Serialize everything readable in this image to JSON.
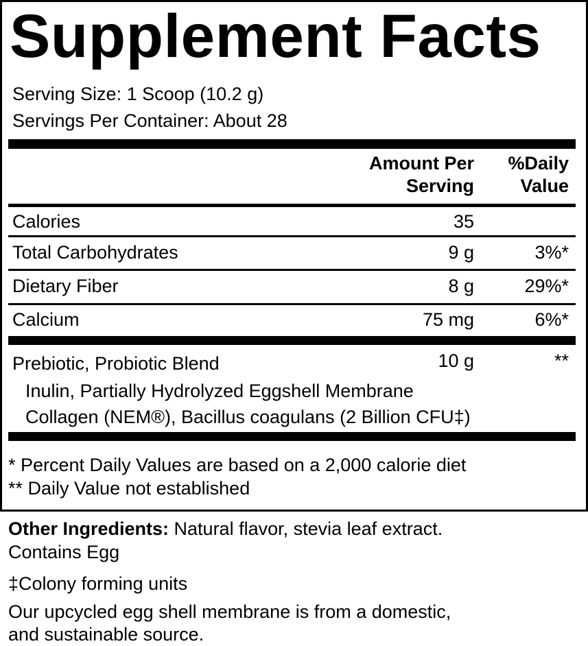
{
  "title": "Supplement Facts",
  "serving_size": "Serving Size: 1 Scoop (10.2 g)",
  "servings_per_container": "Servings Per Container: About 28",
  "header": {
    "amount_line1": "Amount Per",
    "amount_line2": "Serving",
    "dv_line1": "%Daily",
    "dv_line2": "Value"
  },
  "rows": [
    {
      "name": "Calories",
      "amount": "35",
      "dv": ""
    },
    {
      "name": "Total Carbohydrates",
      "amount": "9 g",
      "dv": "3%*"
    },
    {
      "name": "Dietary Fiber",
      "amount": "8 g",
      "dv": "29%*"
    },
    {
      "name": "Calcium",
      "amount": "75 mg",
      "dv": "6%*"
    }
  ],
  "blend": {
    "name": "Prebiotic, Probiotic Blend",
    "amount": "10 g",
    "dv": "**",
    "ingredients_line1": "Inulin, Partially Hydrolyzed Eggshell Membrane",
    "ingredients_line2": "Collagen (NEM®), Bacillus coagulans (2 Billion CFU‡)"
  },
  "footnotes": {
    "percent_dv": "* Percent Daily Values are based on a 2,000 calorie diet",
    "not_established": "** Daily Value not established"
  },
  "other_ingredients": {
    "label": "Other Ingredients:",
    "text": " Natural flavor, stevia leaf extract.",
    "contains": "Contains Egg"
  },
  "cfu_note": "‡Colony forming units",
  "source_note_line1": "Our upcycled egg shell membrane is from a domestic,",
  "source_note_line2": "and sustainable source."
}
